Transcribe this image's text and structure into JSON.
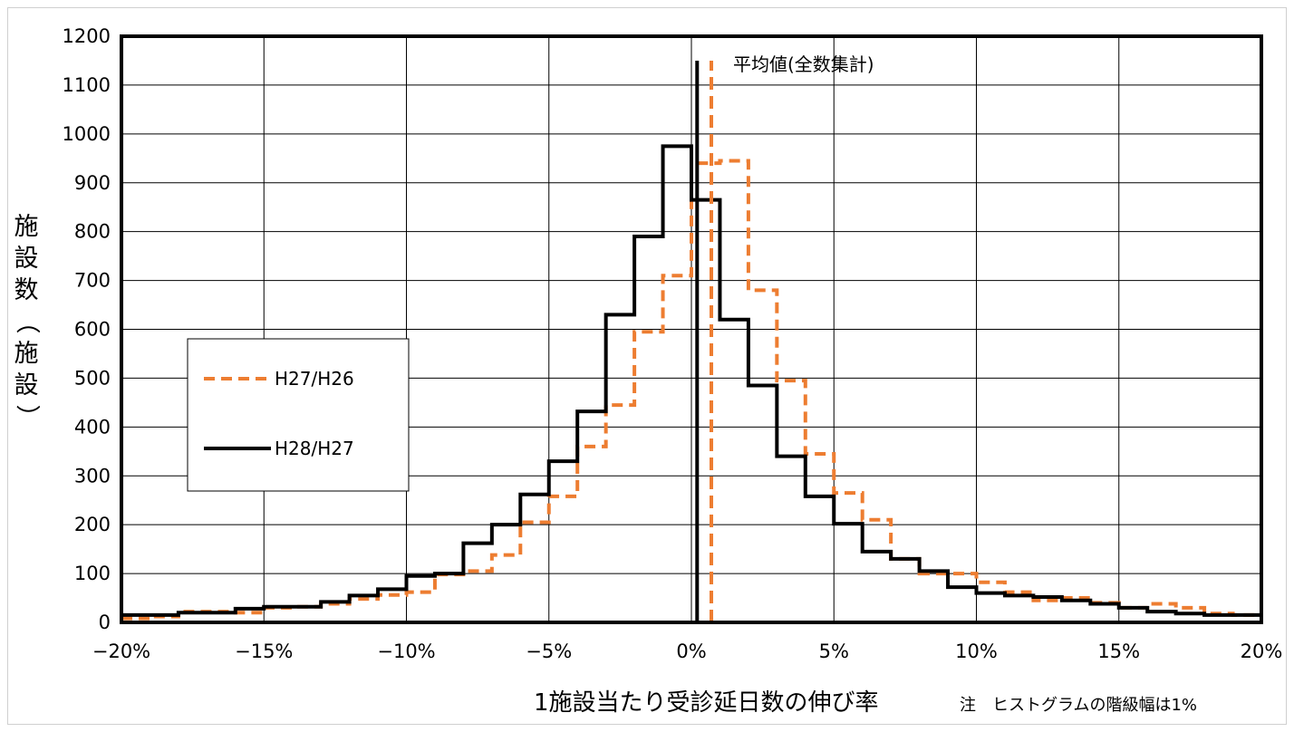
{
  "chart_data": {
    "type": "line",
    "subtype": "step-histogram",
    "title": "",
    "xlabel": "1施設当たり受診延日数の伸び率",
    "ylabel": "施設数（施設）",
    "note": "注　ヒストグラムの階級幅は1%",
    "xlim": [
      -20,
      20
    ],
    "ylim": [
      0,
      1200
    ],
    "x_ticks": [
      -20,
      -15,
      -10,
      -5,
      0,
      5,
      10,
      15,
      20
    ],
    "x_tick_labels": [
      "−20%",
      "−15%",
      "−10%",
      "−5%",
      "0%",
      "5%",
      "10%",
      "15%",
      "20%"
    ],
    "y_ticks": [
      0,
      100,
      200,
      300,
      400,
      500,
      600,
      700,
      800,
      900,
      1000,
      1100,
      1200
    ],
    "y_tick_labels": [
      "0",
      "100",
      "200",
      "300",
      "400",
      "500",
      "600",
      "700",
      "800",
      "900",
      "1000",
      "1100",
      "1200"
    ],
    "grid": true,
    "legend_position": "left",
    "bin_edges": [
      -20,
      -19,
      -18,
      -17,
      -16,
      -15,
      -14,
      -13,
      -12,
      -11,
      -10,
      -9,
      -8,
      -7,
      -6,
      -5,
      -4,
      -3,
      -2,
      -1,
      0,
      1,
      2,
      3,
      4,
      5,
      6,
      7,
      8,
      9,
      10,
      11,
      12,
      13,
      14,
      15,
      16,
      17,
      18,
      19,
      20
    ],
    "series": [
      {
        "name": "H27/H26",
        "color": "#ED7D31",
        "style": "dashed",
        "values": [
          8,
          12,
          22,
          22,
          20,
          30,
          32,
          38,
          48,
          56,
          62,
          98,
          105,
          138,
          205,
          258,
          360,
          445,
          595,
          710,
          940,
          945,
          680,
          495,
          345,
          265,
          210,
          130,
          100,
          100,
          82,
          62,
          45,
          50,
          40,
          30,
          38,
          30,
          18,
          15,
          22
        ],
        "mean": 0.7
      },
      {
        "name": "H28/H27",
        "color": "#000000",
        "style": "solid",
        "values": [
          15,
          15,
          20,
          20,
          28,
          32,
          32,
          42,
          55,
          68,
          95,
          100,
          162,
          200,
          262,
          330,
          432,
          630,
          790,
          975,
          865,
          620,
          485,
          340,
          258,
          202,
          145,
          130,
          105,
          72,
          60,
          55,
          52,
          45,
          38,
          30,
          22,
          18,
          15,
          15,
          22
        ],
        "mean": 0.2
      }
    ],
    "annotation": "平均値(全数集計)"
  }
}
